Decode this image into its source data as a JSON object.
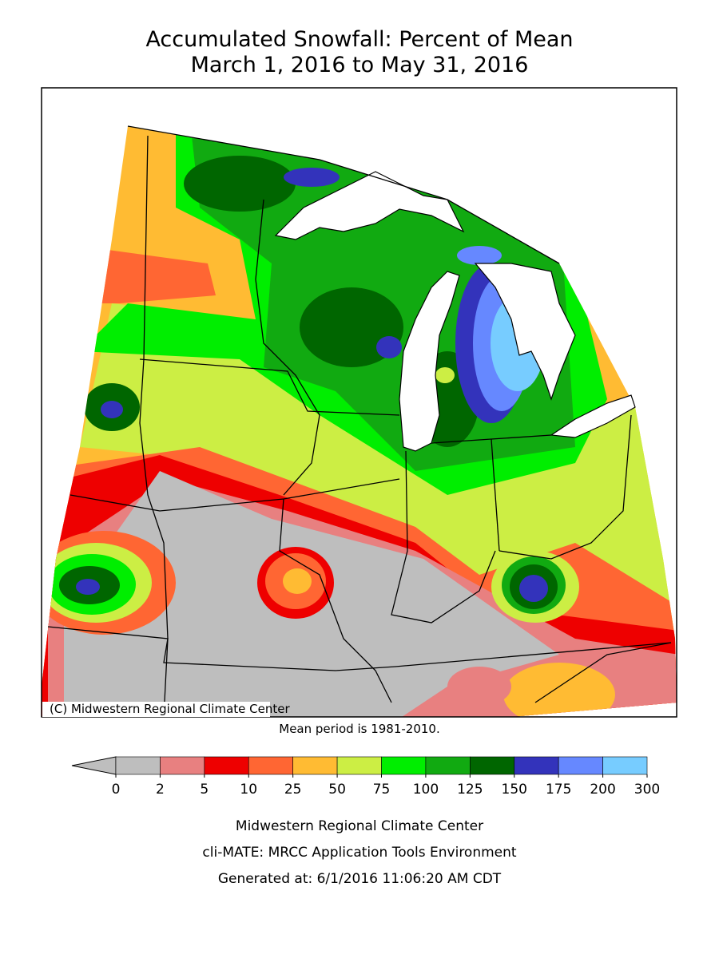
{
  "title": [
    "Accumulated Snowfall: Percent of Mean",
    "March 1, 2016 to May 31, 2016"
  ],
  "map": {
    "credit": "(C) Midwestern Regional Climate Center"
  },
  "note": "Mean period is 1981-2010.",
  "legend": {
    "ticks": [
      0,
      2,
      5,
      10,
      25,
      50,
      75,
      100,
      125,
      150,
      175,
      200,
      300
    ],
    "colors": [
      "#bebebe",
      "#e88080",
      "#ee0000",
      "#ff6633",
      "#ffbb33",
      "#ccee44",
      "#00ee00",
      "#11aa11",
      "#006600",
      "#3333bb",
      "#6688ff",
      "#77ccff"
    ]
  },
  "footer": [
    "Midwestern Regional Climate Center",
    "cli-MATE: MRCC Application Tools Environment",
    "Generated at: 6/1/2016 11:06:20 AM CDT"
  ]
}
